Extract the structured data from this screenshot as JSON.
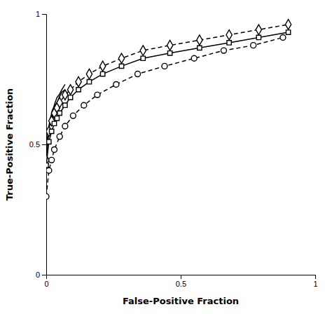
{
  "chart_data": {
    "type": "line",
    "xlabel": "False-Positive Fraction",
    "ylabel": "True-Positive Fraction",
    "xlim": [
      0,
      1
    ],
    "ylim": [
      0,
      1
    ],
    "xticks": [
      0,
      0.5,
      1
    ],
    "yticks": [
      0,
      0.5,
      1
    ],
    "series": [
      {
        "color": "#000000",
        "line_style": "solid",
        "x": [
          0.0,
          0.002,
          0.004,
          0.006,
          0.008,
          0.01,
          0.012,
          0.015,
          0.018,
          0.022,
          0.027,
          0.033,
          0.04,
          0.048,
          0.058,
          0.07
        ],
        "values": [
          0.42,
          0.47,
          0.5,
          0.52,
          0.54,
          0.55,
          0.57,
          0.58,
          0.6,
          0.61,
          0.63,
          0.65,
          0.66,
          0.68,
          0.7,
          0.71
        ]
      },
      {
        "color": "#000000",
        "line_style": "solid",
        "x": [
          0.0,
          0.002,
          0.004,
          0.006,
          0.008,
          0.01,
          0.012,
          0.015,
          0.018,
          0.022,
          0.027,
          0.033,
          0.04,
          0.048,
          0.058,
          0.07
        ],
        "values": [
          0.44,
          0.49,
          0.52,
          0.54,
          0.56,
          0.57,
          0.58,
          0.6,
          0.61,
          0.63,
          0.64,
          0.66,
          0.68,
          0.69,
          0.71,
          0.73
        ]
      },
      {
        "color": "#000000",
        "line_style": "dashed",
        "marker": "diamond",
        "x": [
          0.0,
          0.01,
          0.02,
          0.03,
          0.04,
          0.05,
          0.07,
          0.09,
          0.12,
          0.16,
          0.21,
          0.28,
          0.36,
          0.46,
          0.57,
          0.68,
          0.79,
          0.9
        ],
        "values": [
          0.44,
          0.55,
          0.59,
          0.62,
          0.64,
          0.66,
          0.69,
          0.71,
          0.74,
          0.77,
          0.8,
          0.83,
          0.86,
          0.88,
          0.9,
          0.92,
          0.94,
          0.96
        ]
      },
      {
        "color": "#000000",
        "line_style": "solid",
        "marker": "square",
        "x": [
          0.0,
          0.01,
          0.02,
          0.03,
          0.04,
          0.05,
          0.07,
          0.09,
          0.12,
          0.16,
          0.21,
          0.28,
          0.36,
          0.46,
          0.57,
          0.68,
          0.79,
          0.9
        ],
        "values": [
          0.42,
          0.51,
          0.55,
          0.58,
          0.6,
          0.62,
          0.65,
          0.68,
          0.71,
          0.74,
          0.77,
          0.8,
          0.83,
          0.85,
          0.87,
          0.89,
          0.91,
          0.93
        ]
      },
      {
        "color": "#000000",
        "line_style": "dashed",
        "marker": "circle",
        "x": [
          0.0,
          0.01,
          0.02,
          0.03,
          0.05,
          0.07,
          0.1,
          0.14,
          0.19,
          0.26,
          0.34,
          0.44,
          0.55,
          0.66,
          0.77,
          0.88
        ],
        "values": [
          0.3,
          0.4,
          0.44,
          0.48,
          0.53,
          0.57,
          0.61,
          0.65,
          0.69,
          0.73,
          0.77,
          0.8,
          0.83,
          0.86,
          0.88,
          0.91
        ]
      }
    ]
  }
}
